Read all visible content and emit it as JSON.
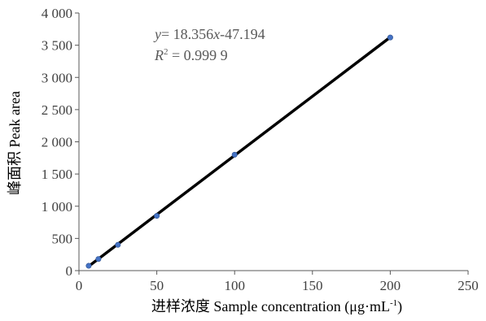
{
  "chart_data": {
    "type": "scatter",
    "title": "",
    "xlabel": "进样浓度 Sample  concentration (μg·mL",
    "xlabel_sup": "-1",
    "xlabel_close": ")",
    "ylabel": "峰面积 Peak area",
    "xlim": [
      0,
      250
    ],
    "ylim": [
      0,
      4000
    ],
    "x_ticks": [
      0,
      50,
      100,
      150,
      200,
      250
    ],
    "x_tick_labels": [
      "0",
      "50",
      "100",
      "150",
      "200",
      "250"
    ],
    "y_ticks": [
      0,
      500,
      1000,
      1500,
      2000,
      2500,
      3000,
      3500,
      4000
    ],
    "y_tick_labels": [
      "0",
      "500",
      "1 000",
      "1 500",
      "2 000",
      "2 500",
      "3 000",
      "3 500",
      "4 000"
    ],
    "grid": false,
    "legend": "none",
    "series": [
      {
        "x": [
          6.25,
          12.5,
          25,
          50,
          100,
          200
        ],
        "y": [
          75,
          180,
          400,
          850,
          1800,
          3620
        ]
      }
    ],
    "trendline": {
      "slope": 18.356,
      "intercept": -47.194,
      "x_range": [
        6.25,
        200
      ],
      "equation": {
        "y_var": "y",
        "eq_rest": "= 18.356",
        "x_var": "x",
        "eq_tail": "-47.194",
        "r_var": "R",
        "r_sup": "2",
        "r_value": " = 0.999 9"
      }
    },
    "colors": {
      "point": "#4472c4",
      "line": "#000000",
      "axis": "#595959"
    }
  }
}
